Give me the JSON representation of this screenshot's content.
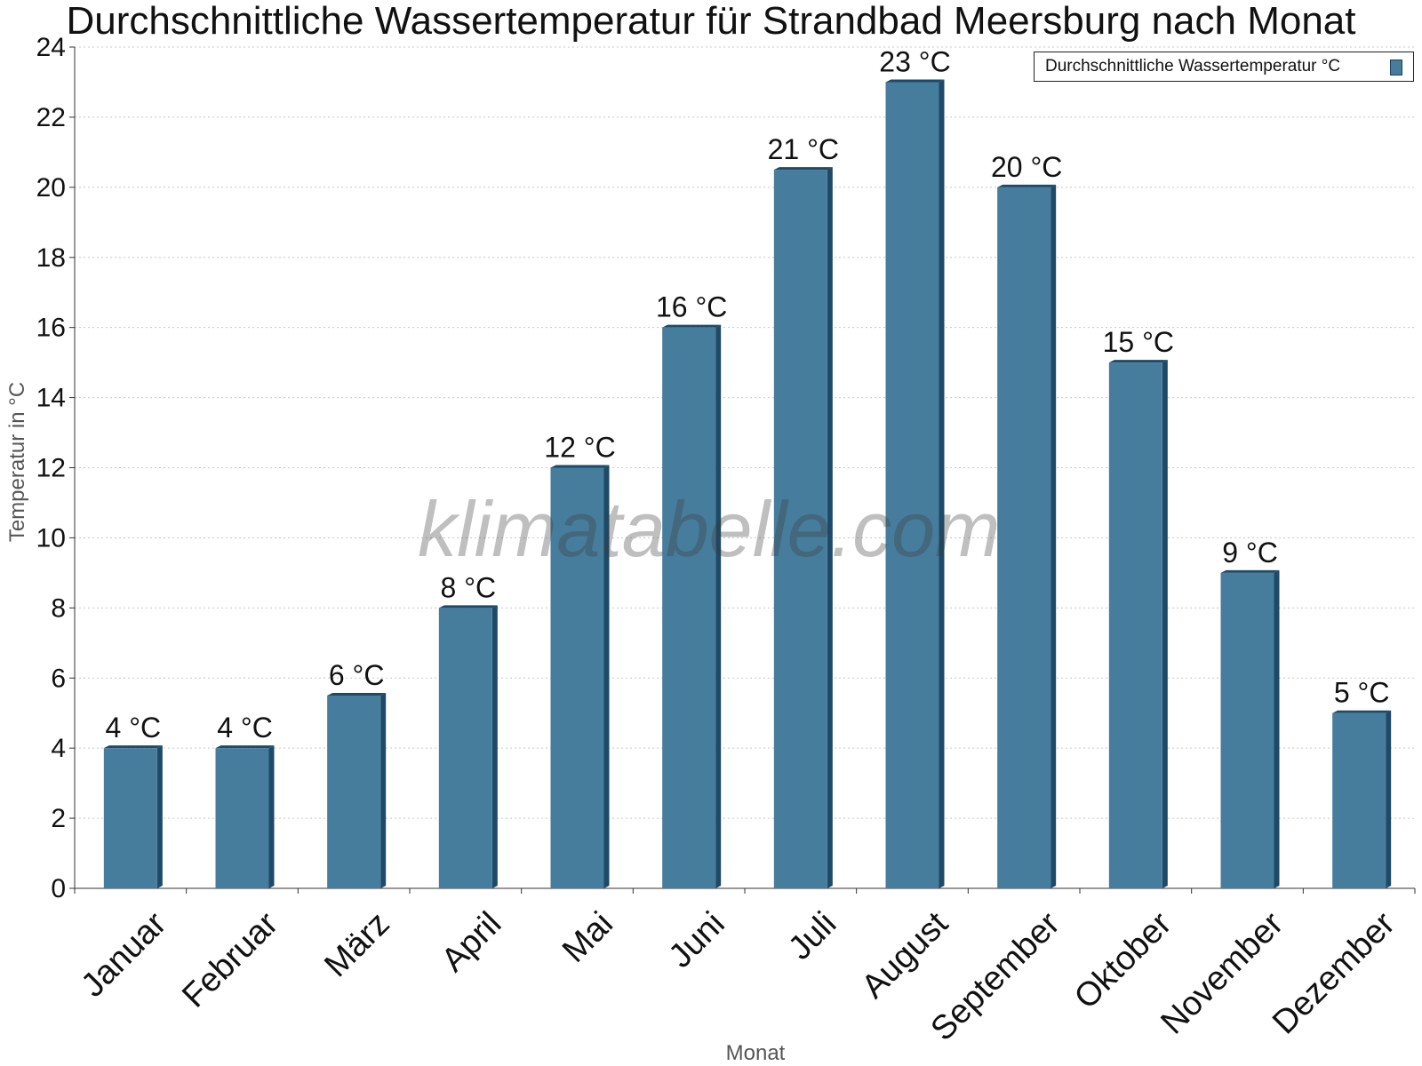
{
  "chart_data": {
    "type": "bar",
    "title": "Durchschnittliche Wassertemperatur für Strandbad Meersburg nach Monat",
    "xlabel": "Monat",
    "ylabel": "Temperatur in °C",
    "ylim": [
      0,
      24
    ],
    "yticks": [
      0,
      2,
      4,
      6,
      8,
      10,
      12,
      14,
      16,
      18,
      20,
      22,
      24
    ],
    "grid": true,
    "legend_position": "top-right",
    "categories": [
      "Januar",
      "Februar",
      "März",
      "April",
      "Mai",
      "Juni",
      "Juli",
      "August",
      "September",
      "Oktober",
      "November",
      "Dezember"
    ],
    "series": [
      {
        "name": "Durchschnittliche Wassertemperatur °C",
        "values": [
          4,
          4,
          5.5,
          8,
          12,
          16,
          20.5,
          23,
          20,
          15,
          9,
          5
        ],
        "data_labels": [
          "4 °C",
          "4 °C",
          "6 °C",
          "8 °C",
          "12 °C",
          "16 °C",
          "21 °C",
          "23 °C",
          "20 °C",
          "15 °C",
          "9 °C",
          "5 °C"
        ],
        "color": "#467c9c"
      }
    ],
    "watermark": "klimatabelle.com"
  }
}
